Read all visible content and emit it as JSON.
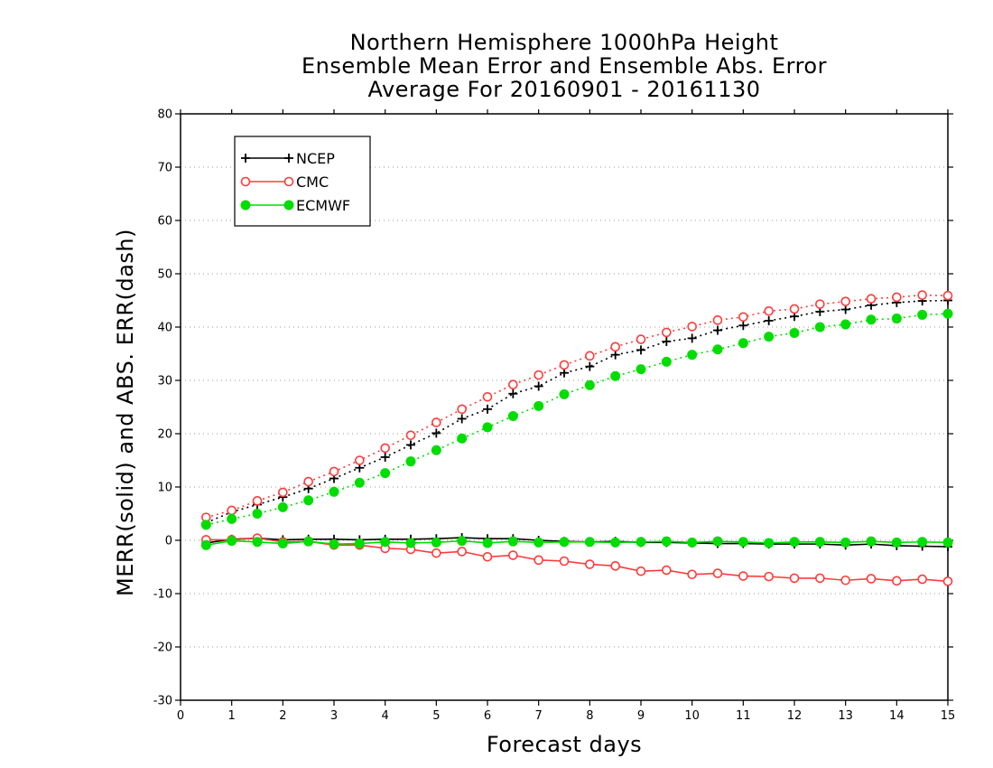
{
  "chart_data": {
    "type": "line",
    "title": [
      "Northern Hemisphere 1000hPa Height",
      "Ensemble Mean Error and Ensemble Abs. Error",
      "Average For 20160901 - 20161130"
    ],
    "xlabel": "Forecast days",
    "ylabel": "MERR(solid) and ABS. ERR(dash)",
    "xlim": [
      0,
      15
    ],
    "ylim": [
      -30,
      80
    ],
    "xticks": [
      0,
      1,
      2,
      3,
      4,
      5,
      6,
      7,
      8,
      9,
      10,
      11,
      12,
      13,
      14,
      15
    ],
    "yticks": [
      -30,
      -20,
      -10,
      0,
      10,
      20,
      30,
      40,
      50,
      60,
      70,
      80
    ],
    "grid": "horizontal-dotted",
    "legend_position": "top-left",
    "x": [
      0.5,
      1,
      1.5,
      2,
      2.5,
      3,
      3.5,
      4,
      4.5,
      5,
      5.5,
      6,
      6.5,
      7,
      7.5,
      8,
      8.5,
      9,
      9.5,
      10,
      10.5,
      11,
      11.5,
      12,
      12.5,
      13,
      13.5,
      14,
      14.5,
      15
    ],
    "series": [
      {
        "name": "NCEP",
        "color": "#000000",
        "marker": "plus",
        "abs_err": [
          3.3,
          5.3,
          6.7,
          8.1,
          9.7,
          11.6,
          13.6,
          15.6,
          17.9,
          20.1,
          22.8,
          24.6,
          27.5,
          28.9,
          31.4,
          32.6,
          34.8,
          35.7,
          37.3,
          37.9,
          39.4,
          40.3,
          41.2,
          42.0,
          42.9,
          43.3,
          44.1,
          44.6,
          44.9,
          45.0
        ],
        "mean_err": [
          -0.5,
          0.2,
          0.4,
          0.1,
          0.2,
          0.2,
          0.1,
          0.2,
          0.2,
          0.3,
          0.5,
          0.3,
          0.3,
          0.0,
          -0.2,
          -0.3,
          -0.2,
          -0.4,
          -0.4,
          -0.5,
          -0.6,
          -0.6,
          -0.7,
          -0.7,
          -0.7,
          -0.9,
          -0.7,
          -1.0,
          -1.1,
          -1.2
        ]
      },
      {
        "name": "CMC",
        "color": "#ff3b3b",
        "marker": "open-circle",
        "abs_err": [
          4.3,
          5.6,
          7.4,
          9.0,
          11.0,
          12.9,
          15.0,
          17.3,
          19.7,
          22.1,
          24.6,
          26.9,
          29.2,
          31.0,
          32.9,
          34.6,
          36.3,
          37.7,
          39.0,
          40.1,
          41.3,
          41.9,
          43.0,
          43.4,
          44.3,
          44.8,
          45.3,
          45.6,
          46.0,
          45.9
        ],
        "mean_err": [
          0.1,
          0.1,
          0.4,
          -0.3,
          -0.2,
          -0.9,
          -0.9,
          -1.5,
          -1.7,
          -2.4,
          -2.1,
          -3.1,
          -2.8,
          -3.7,
          -3.9,
          -4.5,
          -4.8,
          -5.8,
          -5.6,
          -6.4,
          -6.2,
          -6.7,
          -6.8,
          -7.1,
          -7.1,
          -7.5,
          -7.2,
          -7.6,
          -7.3,
          -7.7
        ]
      },
      {
        "name": "ECMWF",
        "color": "#00dd00",
        "marker": "filled-circle",
        "abs_err": [
          2.9,
          4.0,
          5.0,
          6.2,
          7.5,
          9.1,
          10.8,
          12.6,
          14.8,
          16.9,
          19.1,
          21.2,
          23.3,
          25.2,
          27.4,
          29.1,
          30.8,
          32.1,
          33.5,
          34.8,
          35.8,
          37.0,
          38.2,
          38.9,
          40.0,
          40.5,
          41.4,
          41.6,
          42.3,
          42.5
        ],
        "mean_err": [
          -0.9,
          -0.1,
          -0.3,
          -0.6,
          -0.2,
          -0.7,
          -0.6,
          -0.3,
          -0.5,
          -0.4,
          -0.1,
          -0.5,
          -0.2,
          -0.4,
          -0.3,
          -0.3,
          -0.4,
          -0.3,
          -0.2,
          -0.4,
          -0.2,
          -0.3,
          -0.5,
          -0.3,
          -0.3,
          -0.4,
          -0.2,
          -0.4,
          -0.3,
          -0.4
        ]
      }
    ]
  }
}
